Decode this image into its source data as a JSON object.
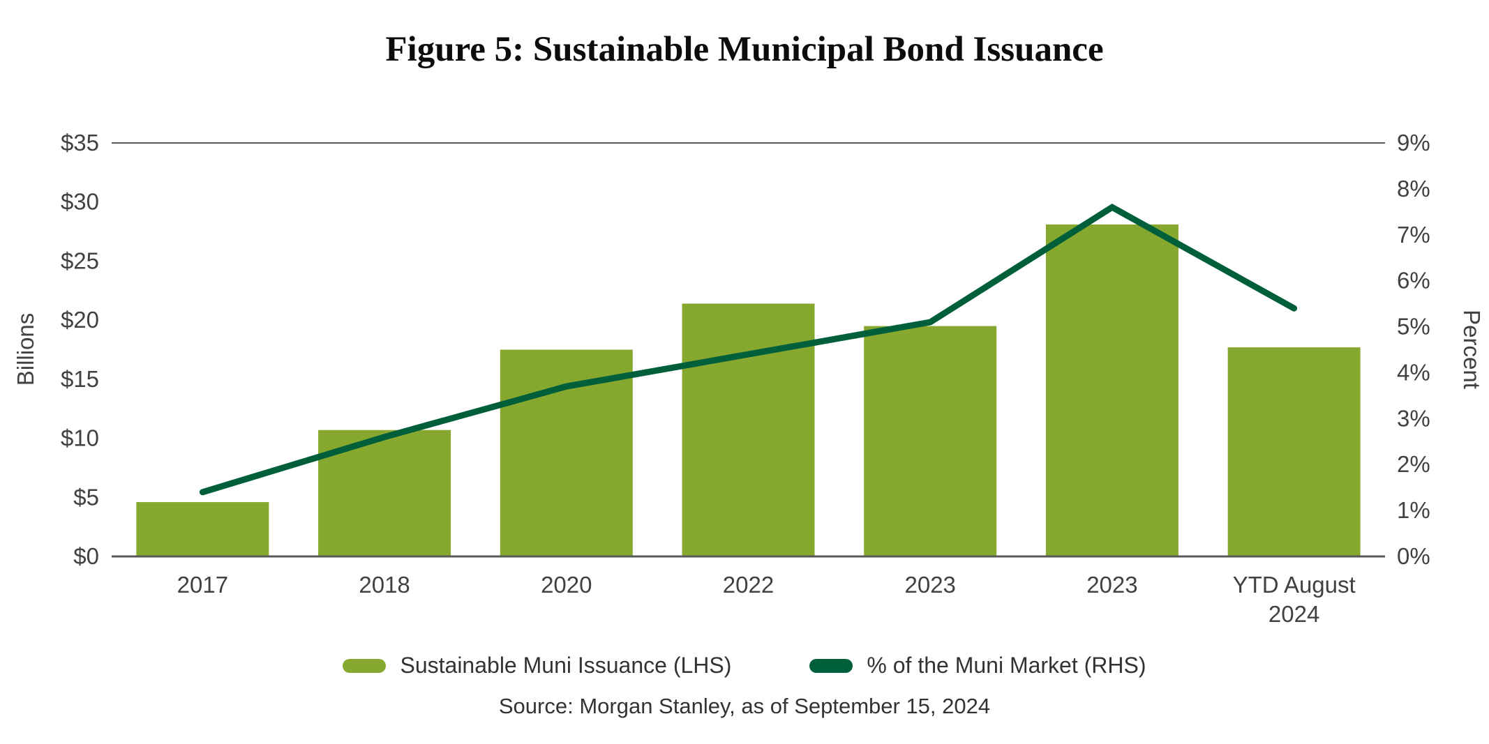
{
  "chart_data": {
    "type": "bar",
    "title": "Figure 5: Sustainable Municipal Bond Issuance",
    "categories": [
      "2017",
      "2018",
      "2020",
      "2022",
      "2023",
      "2023",
      "YTD August 2024"
    ],
    "series": [
      {
        "name": "Sustainable Muni Issuance (LHS)",
        "type": "bar",
        "axis": "left",
        "color": "#86A82F",
        "values": [
          4.6,
          10.7,
          17.5,
          21.4,
          19.5,
          28.1,
          17.7
        ]
      },
      {
        "name": "% of the Muni Market (RHS)",
        "type": "line",
        "axis": "right",
        "color": "#005F3B",
        "values": [
          1.4,
          2.6,
          3.7,
          4.4,
          5.1,
          7.6,
          5.4
        ]
      }
    ],
    "left_axis": {
      "title": "Billions",
      "min": 0,
      "max": 35,
      "ticks": [
        "$0",
        "$5",
        "$10",
        "$15",
        "$20",
        "$25",
        "$30",
        "$35"
      ]
    },
    "right_axis": {
      "title": "Percent",
      "min": 0,
      "max": 9,
      "ticks": [
        "0%",
        "1%",
        "2%",
        "3%",
        "4%",
        "5%",
        "6%",
        "7%",
        "8%",
        "9%"
      ]
    },
    "grid": "horizontal top boundary line and bottom axis line only",
    "legend_position": "bottom-center"
  },
  "source": "Source: Morgan Stanley, as of September 15, 2024",
  "colors": {
    "bar_green": "#86A82F",
    "line_green": "#005F3B",
    "axis_gray": "#58585A",
    "tick_text": "#414042",
    "title_text": "#0C0C0C"
  }
}
